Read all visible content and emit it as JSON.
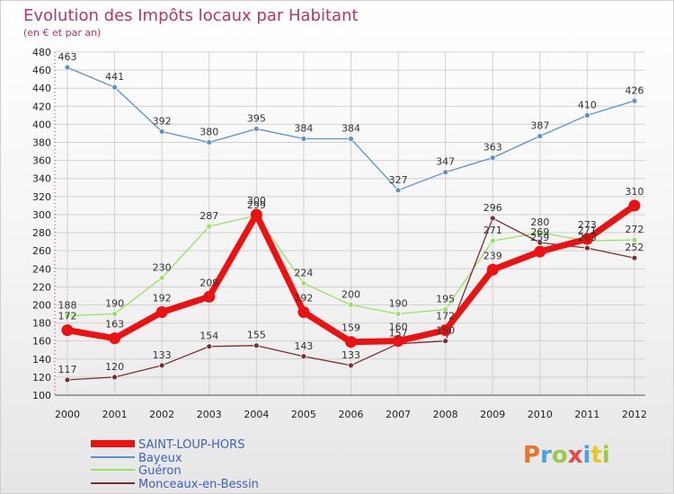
{
  "chart_data": {
    "type": "line",
    "title": "Evolution des Impôts locaux par Habitant",
    "subtitle": "(en € et par an)",
    "x": [
      "2000",
      "2001",
      "2002",
      "2003",
      "2004",
      "2005",
      "2006",
      "2007",
      "2008",
      "2009",
      "2010",
      "2011",
      "2012"
    ],
    "ylim": [
      100,
      480
    ],
    "yticks": [
      100,
      120,
      140,
      160,
      180,
      200,
      220,
      240,
      260,
      280,
      300,
      320,
      340,
      360,
      380,
      400,
      420,
      440,
      460,
      480
    ],
    "grid": true,
    "legend_position": "bottom-left",
    "series": [
      {
        "name": "SAINT-LOUP-HORS",
        "color": "#ee1111",
        "values": [
          172,
          163,
          192,
          209,
          300,
          192,
          159,
          160,
          172,
          239,
          259,
          273,
          310
        ],
        "labels": [
          "172",
          "163",
          "192",
          "209",
          "300",
          "192",
          "159",
          "160",
          "172",
          "239",
          "259",
          "273",
          "310"
        ]
      },
      {
        "name": "Bayeux",
        "color": "#5b92c8",
        "values": [
          463,
          441,
          392,
          380,
          395,
          384,
          384,
          327,
          347,
          363,
          387,
          410,
          426
        ],
        "labels": [
          "463",
          "441",
          "392",
          "380",
          "395",
          "384",
          "384",
          "327",
          "347",
          "363",
          "387",
          "410",
          "426"
        ]
      },
      {
        "name": "Guéron",
        "color": "#99e066",
        "values": [
          188,
          190,
          230,
          287,
          299,
          224,
          200,
          190,
          195,
          271,
          280,
          271,
          272
        ],
        "labels": [
          "188",
          "190",
          "230",
          "287",
          "299",
          "224",
          "200",
          "190",
          "195",
          "271",
          "280",
          "271",
          "272"
        ]
      },
      {
        "name": "Monceaux-en-Bessin",
        "color": "#7a2e2e",
        "values": [
          117,
          120,
          133,
          154,
          155,
          143,
          133,
          157,
          160,
          296,
          269,
          263,
          252
        ],
        "labels": [
          "117",
          "120",
          "133",
          "154",
          "155",
          "143",
          "133",
          "157",
          "160",
          "296",
          "269",
          "263",
          "252"
        ]
      }
    ]
  },
  "watermark": {
    "text": "Proxiti",
    "letter_colors": [
      "#e8732a",
      "#4aa3df",
      "#9cc94a",
      "#e84a4a",
      "#4aa3df",
      "#e8c52a",
      "#9cc94a"
    ]
  }
}
